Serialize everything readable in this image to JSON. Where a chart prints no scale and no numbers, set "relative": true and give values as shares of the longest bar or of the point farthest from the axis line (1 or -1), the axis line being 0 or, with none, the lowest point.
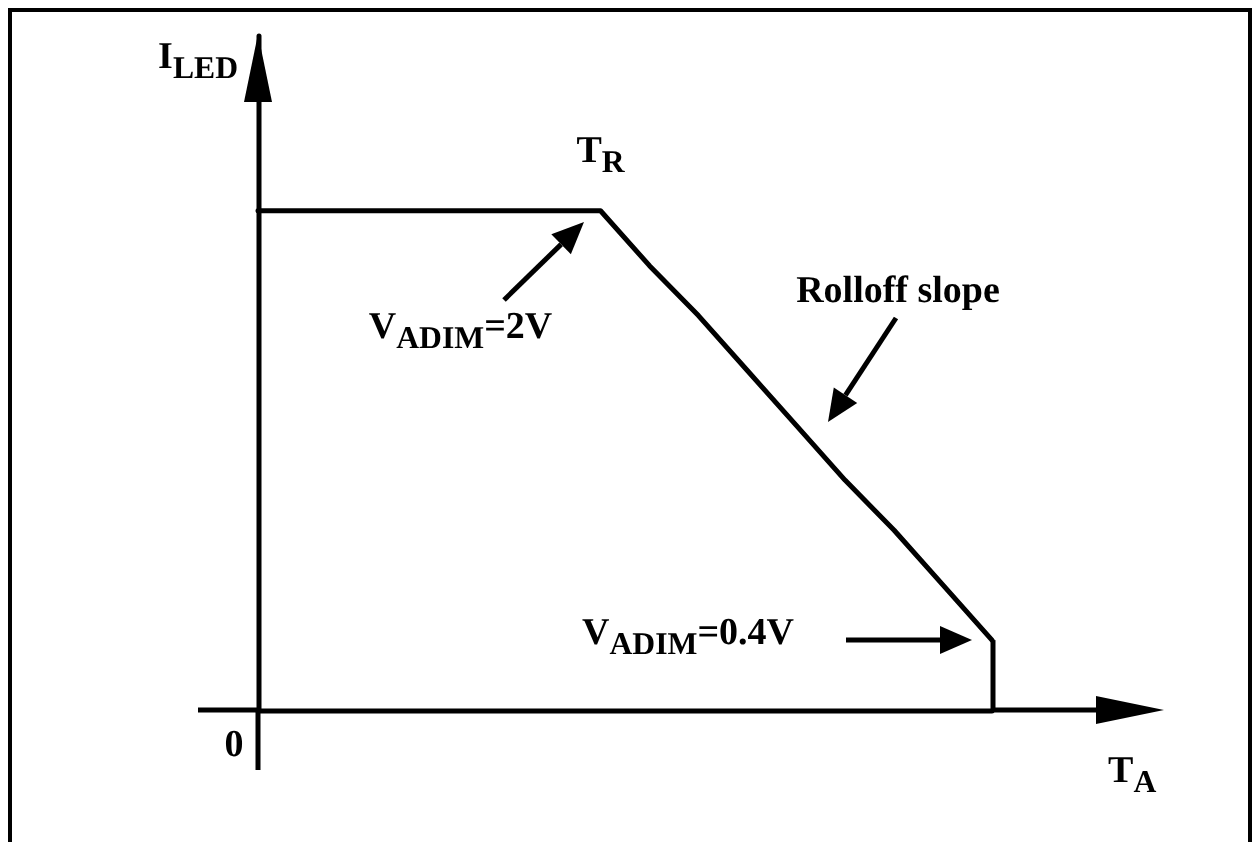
{
  "chart_data": {
    "type": "line",
    "relative": true,
    "xlabel": "T$_{A}$",
    "ylabel": "I$_{LED}$",
    "marker": "none",
    "line_style": "solid",
    "categories": [
      null,
      null,
      null,
      null,
      null,
      null,
      null,
      null,
      null,
      null,
      null,
      null,
      null,
      null,
      null,
      null
    ],
    "series": [
      {
        "color": "#000000",
        "values": [
          1,
          1,
          1,
          1,
          1,
          1,
          1,
          1,
          0.89,
          0.79,
          0.68,
          0.57,
          0.46,
          0.36,
          0.25,
          0.14
        ]
      }
    ],
    "annotations": [
      {
        "text": "T$_{R}$",
        "y": 1
      },
      {
        "text": "V$_{ADIM}$=2V",
        "y": 1
      },
      "Rolloff slope",
      "V$_{ADIM}$=0.4V",
      "0"
    ]
  }
}
